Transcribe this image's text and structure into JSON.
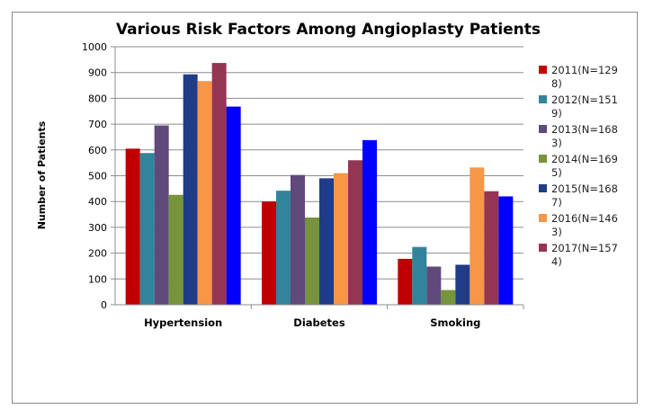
{
  "chart_data": {
    "type": "bar",
    "title": "Various Risk Factors Among Angioplasty Patients",
    "xlabel": "",
    "ylabel": "Number of Patients",
    "ylim": [
      0,
      1000
    ],
    "ytick_step": 100,
    "yticks": [
      "0",
      "100",
      "200",
      "300",
      "400",
      "500",
      "600",
      "700",
      "800",
      "900",
      "1000"
    ],
    "grid": true,
    "legend_position": "right",
    "categories": [
      "Hypertension",
      "Diabetes",
      "Smoking"
    ],
    "series": [
      {
        "name": "2011(N=1298)",
        "legend_lines": [
          "2011(N=129",
          "8)"
        ],
        "color": "#c00000",
        "values": [
          605,
          400,
          178
        ]
      },
      {
        "name": "2012(N=1519)",
        "legend_lines": [
          "2012(N=151",
          "9)"
        ],
        "color": "#31849b",
        "values": [
          588,
          442,
          224
        ]
      },
      {
        "name": "2013(N=1683)",
        "legend_lines": [
          "2013(N=168",
          "3)"
        ],
        "color": "#604a7b",
        "values": [
          695,
          503,
          148
        ]
      },
      {
        "name": "2014(N=1695)",
        "legend_lines": [
          "2014(N=169",
          "5)"
        ],
        "color": "#77933c",
        "values": [
          426,
          338,
          57
        ]
      },
      {
        "name": "2015(N=1687)",
        "legend_lines": [
          "2015(N=168",
          "7)"
        ],
        "color": "#1f3c88",
        "values": [
          893,
          490,
          155
        ]
      },
      {
        "name": "2016(N=1463)",
        "legend_lines": [
          "2016(N=146",
          "3)"
        ],
        "color": "#f79646",
        "values": [
          867,
          510,
          532
        ]
      },
      {
        "name": "2017(N=1574)",
        "legend_lines": [
          "2017(N=157",
          "4)"
        ],
        "color": "#953553",
        "values": [
          937,
          560,
          440
        ]
      },
      {
        "name": "",
        "legend_lines": [],
        "color": "#0000ff",
        "values": [
          768,
          638,
          420
        ]
      }
    ]
  }
}
